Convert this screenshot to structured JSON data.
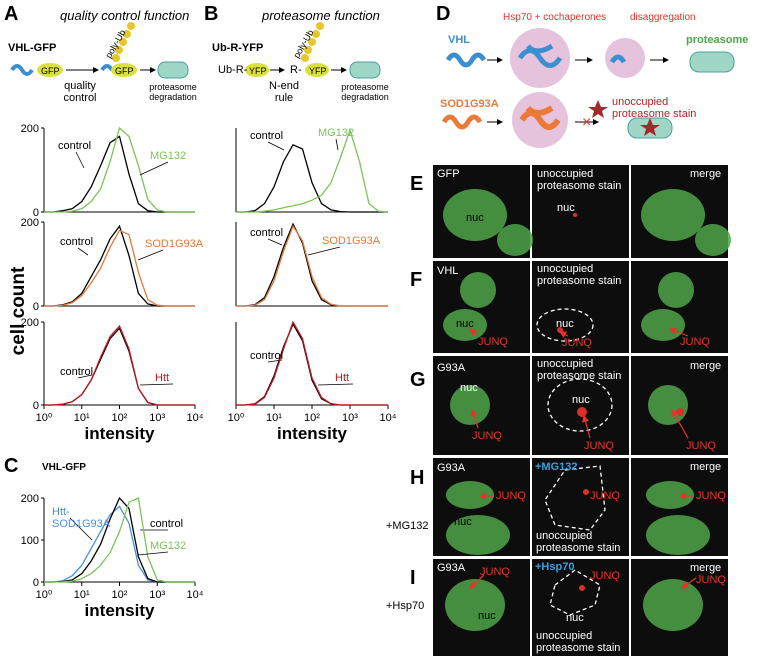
{
  "panel_labels": [
    "A",
    "B",
    "C",
    "D"
  ],
  "panel_a": {
    "title": "quality control function",
    "construct": "VHL-GFP",
    "diagram": {
      "gfp_1": "GFP",
      "poly_ub": "poly-Ub",
      "gfp_2": "GFP",
      "step": "quality control",
      "end": "proteasome degradation"
    }
  },
  "panel_b": {
    "title": "proteasome function",
    "construct": "Ub-R-YFP",
    "diagram": {
      "ub_r": "Ub-R-",
      "yfp_1": "YFP",
      "r": "R-",
      "yfp_2": "YFP",
      "poly_ub": "poly-Ub",
      "step": "N-end rule",
      "end": "proteasome degradation"
    }
  },
  "panel_c": {
    "construct": "VHL-GFP"
  },
  "panel_d": {
    "vhl": "VHL",
    "chaperones": "Hsp70 + cochaperones",
    "disaggregation": "disaggregation",
    "proteasome": "proteasome",
    "sod": "SOD1G93A",
    "unoccupied": "unoccupied proteasome stain"
  },
  "microscopy": {
    "rows": [
      {
        "letter": "E",
        "construct": "GFP",
        "stain": "unoccupied proteasome stain",
        "merge": "merge",
        "nuc_gfp": "nuc",
        "nuc_stain": "nuc"
      },
      {
        "letter": "F",
        "construct": "VHL",
        "stain": "unoccupied proteasome stain",
        "nuc_gfp": "nuc",
        "junq_gfp": "JUNQ",
        "nuc_stain": "nuc",
        "junq_stain": "JUNQ",
        "junq_merge": "JUNQ"
      },
      {
        "letter": "G",
        "construct": "G93A",
        "stain": "unoccupied proteasome stain",
        "merge": "merge",
        "nuc_gfp": "nuc",
        "junq_gfp": "JUNQ",
        "nuc_stain": "nuc",
        "junq_stain": "JUNQ",
        "junq_merge": "JUNQ"
      },
      {
        "letter": "H",
        "treatment": "+MG132",
        "construct": "G93A",
        "stain_treatment": "+MG132",
        "stain": "unoccupied proteasome stain",
        "merge": "merge",
        "nuc_gfp": "nuc",
        "junq_gfp": "JUNQ",
        "junq_stain": "JUNQ",
        "junq_merge": "JUNQ"
      },
      {
        "letter": "I",
        "treatment": "+Hsp70",
        "construct": "G93A",
        "stain_treatment": "+Hsp70",
        "stain": "unoccupied proteasome stain",
        "merge": "merge",
        "nuc_gfp": "nuc",
        "junq_gfp": "JUNQ",
        "nuc_stain": "nuc",
        "junq_stain": "JUNQ",
        "junq_merge": "JUNQ"
      }
    ]
  },
  "chart_data": [
    {
      "type": "line",
      "xlog": true,
      "x": [
        1,
        1.78,
        3.16,
        5.62,
        10,
        17.8,
        31.6,
        56.2,
        100,
        178,
        316,
        562,
        1000,
        1778,
        3162,
        5623,
        10000
      ],
      "xlim": [
        1,
        10000
      ],
      "ylim": [
        0,
        200
      ],
      "yticks": [
        0,
        200
      ],
      "series": [
        {
          "name": "control",
          "color": "#000000",
          "values": [
            0,
            0,
            3,
            8,
            25,
            60,
            110,
            165,
            180,
            90,
            20,
            3,
            0,
            0,
            0,
            0,
            0
          ]
        },
        {
          "name": "MG132",
          "color": "#7cc45a",
          "values": [
            0,
            0,
            0,
            2,
            8,
            25,
            55,
            120,
            200,
            180,
            110,
            30,
            5,
            0,
            0,
            0,
            0
          ]
        }
      ]
    },
    {
      "type": "line",
      "xlog": true,
      "x": [
        1,
        1.78,
        3.16,
        5.62,
        10,
        17.8,
        31.6,
        56.2,
        100,
        178,
        316,
        562,
        1000,
        1778,
        3162,
        5623,
        10000
      ],
      "xlim": [
        1,
        10000
      ],
      "ylim": [
        0,
        200
      ],
      "yticks": [
        0,
        200
      ],
      "ylabel": "cell count",
      "series": [
        {
          "name": "control",
          "color": "#000000",
          "values": [
            0,
            0,
            3,
            10,
            30,
            70,
            110,
            160,
            190,
            120,
            30,
            5,
            0,
            0,
            0,
            0,
            0
          ]
        },
        {
          "name": "SOD1G93A",
          "color": "#e8773a",
          "values": [
            0,
            0,
            2,
            8,
            25,
            55,
            90,
            140,
            180,
            170,
            80,
            15,
            2,
            0,
            0,
            0,
            0
          ]
        }
      ]
    },
    {
      "type": "line",
      "xlog": true,
      "x": [
        1,
        1.78,
        3.16,
        5.62,
        10,
        17.8,
        31.6,
        56.2,
        100,
        178,
        316,
        562,
        1000,
        1778,
        3162,
        5623,
        10000
      ],
      "xlim": [
        1,
        10000
      ],
      "ylim": [
        0,
        200
      ],
      "yticks": [
        0,
        200
      ],
      "xlabel": "intensity",
      "xticks": [
        {
          "value": 1,
          "label": "10⁰"
        },
        {
          "value": 10,
          "label": "10¹"
        },
        {
          "value": 100,
          "label": "10²"
        },
        {
          "value": 1000,
          "label": "10³"
        },
        {
          "value": 10000,
          "label": "10⁴"
        }
      ],
      "series": [
        {
          "name": "control",
          "color": "#000000",
          "values": [
            0,
            0,
            2,
            8,
            25,
            60,
            110,
            160,
            185,
            130,
            40,
            6,
            0,
            0,
            0,
            0,
            0
          ]
        },
        {
          "name": "Htt",
          "color": "#c4171f",
          "values": [
            0,
            0,
            2,
            8,
            25,
            60,
            115,
            165,
            190,
            135,
            40,
            6,
            0,
            0,
            0,
            0,
            0
          ]
        }
      ]
    },
    {
      "type": "line",
      "xlog": true,
      "x": [
        1,
        1.78,
        3.16,
        5.62,
        10,
        17.8,
        31.6,
        56.2,
        100,
        178,
        316,
        562,
        1000,
        1778,
        3162,
        5623,
        10000
      ],
      "xlim": [
        1,
        10000
      ],
      "ylim": [
        0,
        200
      ],
      "series": [
        {
          "name": "control",
          "color": "#000000",
          "values": [
            0,
            0,
            3,
            20,
            60,
            120,
            160,
            150,
            70,
            20,
            5,
            1,
            0,
            0,
            0,
            0,
            0
          ]
        },
        {
          "name": "MG132",
          "color": "#7cc45a",
          "values": [
            0,
            0,
            0,
            2,
            5,
            10,
            15,
            20,
            28,
            40,
            70,
            130,
            195,
            120,
            20,
            2,
            0
          ]
        }
      ]
    },
    {
      "type": "line",
      "xlog": true,
      "x": [
        1,
        1.78,
        3.16,
        5.62,
        10,
        17.8,
        31.6,
        56.2,
        100,
        178,
        316,
        562,
        1000,
        1778,
        3162,
        5623,
        10000
      ],
      "xlim": [
        1,
        10000
      ],
      "ylim": [
        0,
        200
      ],
      "series": [
        {
          "name": "control",
          "color": "#000000",
          "values": [
            0,
            0,
            3,
            20,
            70,
            140,
            195,
            150,
            60,
            15,
            3,
            0,
            0,
            0,
            0,
            0,
            0
          ]
        },
        {
          "name": "SOD1G93A",
          "color": "#e8773a",
          "values": [
            0,
            0,
            2,
            15,
            60,
            130,
            190,
            155,
            70,
            20,
            4,
            0,
            0,
            0,
            0,
            0,
            0
          ]
        }
      ]
    },
    {
      "type": "line",
      "xlog": true,
      "x": [
        1,
        1.78,
        3.16,
        5.62,
        10,
        17.8,
        31.6,
        56.2,
        100,
        178,
        316,
        562,
        1000,
        1778,
        3162,
        5623,
        10000
      ],
      "xlim": [
        1,
        10000
      ],
      "ylim": [
        0,
        200
      ],
      "xlabel": "intensity",
      "xticks": [
        {
          "value": 1,
          "label": "10⁰"
        },
        {
          "value": 10,
          "label": "10¹"
        },
        {
          "value": 100,
          "label": "10²"
        },
        {
          "value": 1000,
          "label": "10³"
        },
        {
          "value": 10000,
          "label": "10⁴"
        }
      ],
      "series": [
        {
          "name": "control",
          "color": "#000000",
          "values": [
            0,
            0,
            3,
            20,
            70,
            140,
            195,
            155,
            60,
            15,
            3,
            0,
            0,
            0,
            0,
            0,
            0
          ]
        },
        {
          "name": "Htt",
          "color": "#c4171f",
          "values": [
            0,
            0,
            2,
            18,
            65,
            135,
            200,
            160,
            65,
            18,
            3,
            0,
            0,
            0,
            0,
            0,
            0
          ]
        }
      ]
    },
    {
      "type": "line",
      "xlog": true,
      "x": [
        1,
        1.78,
        3.16,
        5.62,
        10,
        17.8,
        31.6,
        56.2,
        100,
        178,
        316,
        562,
        1000,
        1778,
        3162,
        5623,
        10000
      ],
      "xlim": [
        1,
        10000
      ],
      "ylim": [
        0,
        200
      ],
      "yticks": [
        0,
        100,
        200
      ],
      "xlabel": "intensity",
      "xticks": [
        {
          "value": 1,
          "label": "10⁰"
        },
        {
          "value": 10,
          "label": "10¹"
        },
        {
          "value": 100,
          "label": "10²"
        },
        {
          "value": 1000,
          "label": "10³"
        },
        {
          "value": 10000,
          "label": "10⁴"
        }
      ],
      "series": [
        {
          "name": "Htt-SOD1G93A",
          "color": "#4a90d9",
          "values": [
            0,
            0,
            3,
            15,
            40,
            80,
            120,
            160,
            180,
            140,
            40,
            5,
            0,
            0,
            0,
            0,
            0
          ]
        },
        {
          "name": "control",
          "color": "#000000",
          "values": [
            0,
            0,
            1,
            5,
            20,
            50,
            90,
            150,
            200,
            175,
            60,
            8,
            0,
            0,
            0,
            0,
            0
          ]
        },
        {
          "name": "MG132",
          "color": "#7cc45a",
          "values": [
            0,
            0,
            0,
            2,
            8,
            20,
            40,
            70,
            120,
            190,
            200,
            60,
            5,
            0,
            0,
            0,
            0
          ]
        }
      ]
    }
  ]
}
